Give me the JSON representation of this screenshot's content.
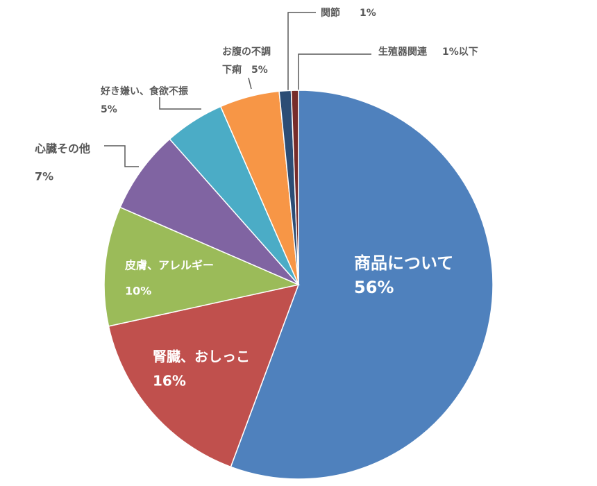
{
  "chart_data": {
    "type": "pie",
    "categories": [
      "商品について",
      "腎臓、おしっこ",
      "皮膚、アレルギー",
      "心臓その他",
      "好き嫌い、食欲不振",
      "お腹の不調下痢",
      "関節",
      "生殖器関連"
    ],
    "values": [
      56,
      16,
      10,
      7,
      5,
      5,
      1,
      0.6
    ],
    "value_labels": [
      "56%",
      "16%",
      "10%",
      "7%",
      "5%",
      "5%",
      "1%",
      "1%以下"
    ],
    "colors": [
      "#4f81bd",
      "#c0504d",
      "#9bbb59",
      "#8064a2",
      "#4bacc6",
      "#f79646",
      "#2c4d75",
      "#772c2a"
    ]
  }
}
